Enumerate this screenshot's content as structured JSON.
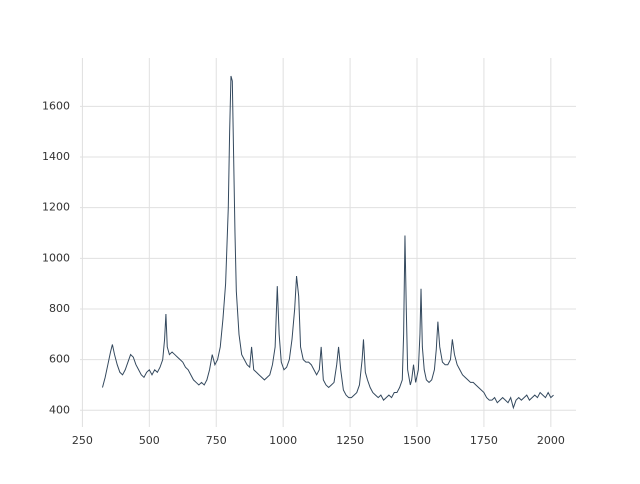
{
  "chart_data": {
    "type": "line",
    "x": [
      325,
      335,
      345,
      355,
      362,
      370,
      380,
      390,
      400,
      410,
      420,
      430,
      440,
      450,
      460,
      470,
      480,
      490,
      500,
      510,
      520,
      530,
      540,
      550,
      557,
      562,
      567,
      575,
      585,
      595,
      605,
      615,
      625,
      635,
      645,
      655,
      665,
      675,
      685,
      695,
      705,
      715,
      725,
      735,
      745,
      755,
      765,
      775,
      785,
      795,
      800,
      805,
      810,
      815,
      820,
      825,
      835,
      845,
      855,
      865,
      875,
      882,
      890,
      900,
      910,
      920,
      930,
      940,
      950,
      960,
      970,
      978,
      985,
      993,
      1003,
      1013,
      1023,
      1033,
      1043,
      1050,
      1058,
      1065,
      1075,
      1085,
      1095,
      1105,
      1115,
      1125,
      1135,
      1142,
      1150,
      1160,
      1170,
      1180,
      1190,
      1200,
      1207,
      1215,
      1225,
      1235,
      1245,
      1255,
      1265,
      1275,
      1285,
      1295,
      1300,
      1307,
      1315,
      1325,
      1335,
      1345,
      1355,
      1365,
      1375,
      1385,
      1395,
      1405,
      1415,
      1425,
      1435,
      1445,
      1450,
      1455,
      1460,
      1465,
      1475,
      1480,
      1487,
      1495,
      1505,
      1511,
      1515,
      1520,
      1527,
      1535,
      1545,
      1555,
      1565,
      1572,
      1578,
      1585,
      1595,
      1605,
      1615,
      1625,
      1632,
      1640,
      1650,
      1660,
      1670,
      1680,
      1690,
      1700,
      1710,
      1720,
      1730,
      1740,
      1750,
      1760,
      1770,
      1780,
      1790,
      1800,
      1810,
      1820,
      1830,
      1840,
      1850,
      1860,
      1870,
      1880,
      1890,
      1900,
      1910,
      1920,
      1930,
      1940,
      1950,
      1960,
      1970,
      1980,
      1990,
      2000,
      2010
    ],
    "series": [
      {
        "color": "#34495e",
        "values": [
          490,
          530,
          580,
          630,
          660,
          620,
          580,
          550,
          540,
          560,
          590,
          620,
          610,
          580,
          560,
          540,
          530,
          550,
          560,
          540,
          560,
          550,
          570,
          600,
          680,
          780,
          650,
          620,
          630,
          620,
          610,
          600,
          590,
          570,
          560,
          540,
          520,
          510,
          500,
          510,
          500,
          520,
          560,
          620,
          580,
          600,
          650,
          760,
          900,
          1200,
          1500,
          1720,
          1700,
          1400,
          1100,
          870,
          700,
          620,
          600,
          580,
          570,
          650,
          560,
          550,
          540,
          530,
          520,
          530,
          540,
          580,
          650,
          890,
          700,
          590,
          560,
          570,
          600,
          680,
          800,
          930,
          850,
          650,
          600,
          590,
          590,
          580,
          560,
          540,
          560,
          650,
          520,
          500,
          490,
          500,
          510,
          580,
          650,
          560,
          480,
          460,
          450,
          450,
          460,
          470,
          500,
          600,
          680,
          550,
          520,
          490,
          470,
          460,
          450,
          460,
          440,
          450,
          460,
          450,
          470,
          470,
          490,
          520,
          700,
          1090,
          800,
          560,
          500,
          520,
          580,
          510,
          560,
          700,
          880,
          650,
          560,
          520,
          510,
          520,
          560,
          640,
          750,
          650,
          590,
          580,
          580,
          600,
          680,
          620,
          580,
          560,
          540,
          530,
          520,
          510,
          510,
          500,
          490,
          480,
          470,
          450,
          440,
          440,
          450,
          430,
          440,
          450,
          440,
          430,
          450,
          410,
          440,
          450,
          440,
          450,
          460,
          440,
          450,
          460,
          450,
          470,
          460,
          450,
          470,
          450,
          460
        ]
      }
    ],
    "xlim": [
      241,
      2094
    ],
    "ylim": [
      334,
      1791
    ],
    "xticks": [
      250,
      500,
      750,
      1000,
      1250,
      1500,
      1750,
      2000
    ],
    "yticks": [
      400,
      600,
      800,
      1000,
      1200,
      1400,
      1600
    ],
    "grid": true
  }
}
